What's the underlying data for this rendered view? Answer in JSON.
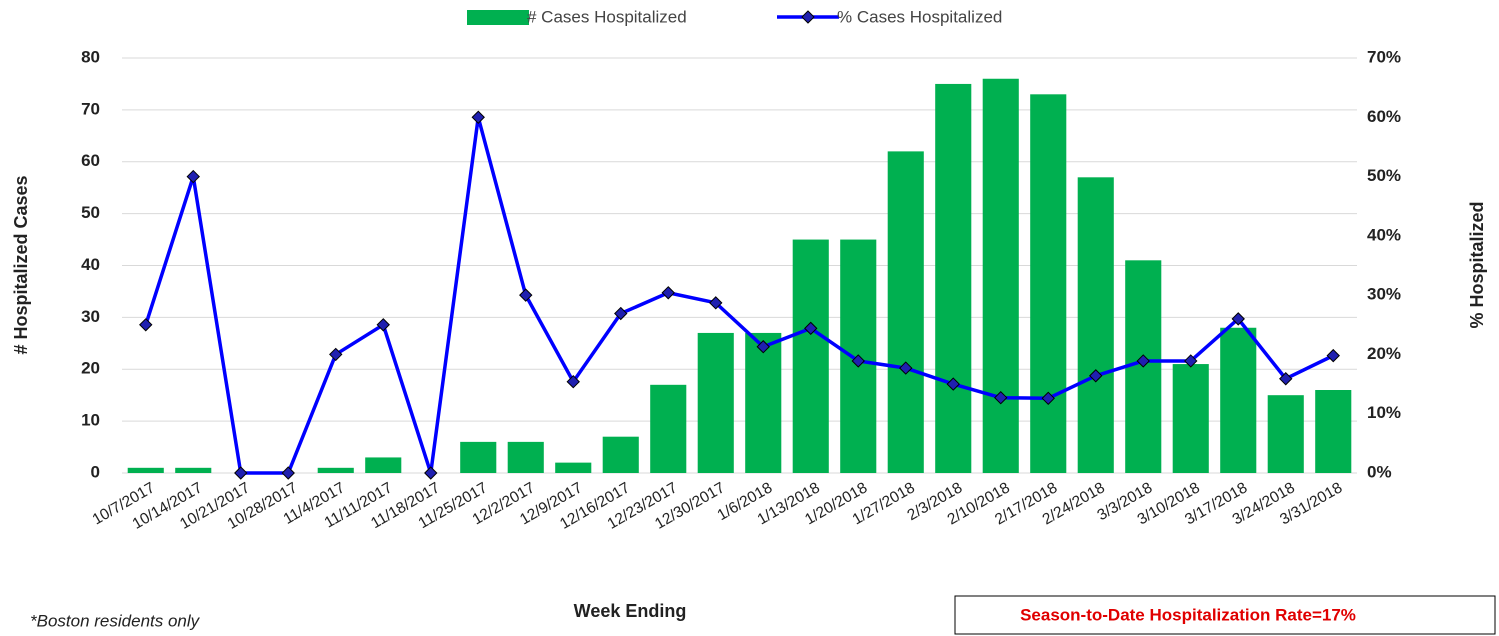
{
  "chart_data": {
    "type": "bar-line",
    "categories": [
      "10/7/2017",
      "10/14/2017",
      "10/21/2017",
      "10/28/2017",
      "11/4/2017",
      "11/11/2017",
      "11/18/2017",
      "11/25/2017",
      "12/2/2017",
      "12/9/2017",
      "12/16/2017",
      "12/23/2017",
      "12/30/2017",
      "1/6/2018",
      "1/13/2018",
      "1/20/2018",
      "1/27/2018",
      "2/3/2018",
      "2/10/2018",
      "2/17/2018",
      "2/24/2018",
      "3/3/2018",
      "3/10/2018",
      "3/17/2018",
      "3/24/2018",
      "3/31/2018"
    ],
    "series": [
      {
        "name": "# Cases Hospitalized",
        "color": "#00b050",
        "type": "bar",
        "values": [
          1,
          1,
          0,
          0,
          1,
          3,
          0,
          6,
          6,
          2,
          7,
          17,
          27,
          27,
          45,
          45,
          62,
          75,
          76,
          73,
          57,
          41,
          21,
          28,
          15,
          16
        ]
      },
      {
        "name": "% Cases Hospitalized",
        "color": "#0000ff",
        "marker_color": "#2020b0",
        "type": "line",
        "axis": "y2",
        "values": [
          25,
          50,
          0,
          0,
          20,
          25,
          0,
          60,
          30,
          15.4,
          26.9,
          30.4,
          28.7,
          21.3,
          24.4,
          18.9,
          17.7,
          15.0,
          12.7,
          12.6,
          16.4,
          18.9,
          18.9,
          26.0,
          15.9,
          19.8
        ]
      }
    ],
    "ylim": [
      0,
      80
    ],
    "yticks": [
      0,
      10,
      20,
      30,
      40,
      50,
      60,
      70,
      80
    ],
    "y2lim": [
      0,
      70
    ],
    "y2ticks": [
      {
        "value": 0,
        "label": "0%"
      },
      {
        "value": 10,
        "label": "10%"
      },
      {
        "value": 20,
        "label": "20%"
      },
      {
        "value": 30,
        "label": "30%"
      },
      {
        "value": 40,
        "label": "40%"
      },
      {
        "value": 50,
        "label": "50%"
      },
      {
        "value": 60,
        "label": "60%"
      },
      {
        "value": 70,
        "label": "70%"
      }
    ],
    "ylabel": "# Hospitalized Cases",
    "y2label": "% Hospitalized",
    "xlabel": "Week Ending",
    "grid": true,
    "legend": "top",
    "annotations": [
      "*Boston residents only",
      "Season-to-Date Hospitalization Rate=17%"
    ]
  }
}
